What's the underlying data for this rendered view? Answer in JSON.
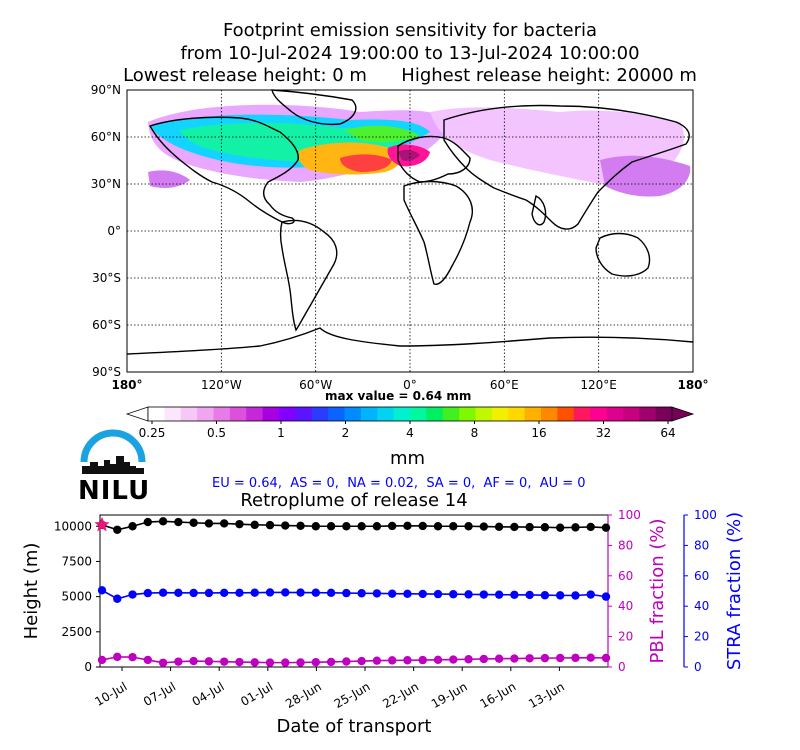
{
  "title": {
    "line1": "Footprint emission sensitivity for bacteria",
    "line2": "from 10-Jul-2024 19:00:00 to 13-Jul-2024 10:00:00",
    "line3": "Lowest release height: 0 m      Highest release height: 20000 m"
  },
  "map": {
    "lat_labels": [
      "90°N",
      "60°N",
      "30°N",
      "0°",
      "30°S",
      "60°S",
      "90°S"
    ],
    "lon_labels": [
      "180°",
      "120°W",
      "60°W",
      "0°",
      "60°E",
      "120°E",
      "180°"
    ],
    "max_value_label": "max value = 0.64 mm"
  },
  "colorbar": {
    "tick_labels": [
      "0.25",
      "0.5",
      "1",
      "2",
      "4",
      "8",
      "16",
      "32",
      "64"
    ],
    "unit": "mm",
    "colors": [
      "#ffffff",
      "#fbe6fb",
      "#f5c8f5",
      "#f0a5f0",
      "#e87be8",
      "#dc50dc",
      "#c428d8",
      "#a800e0",
      "#8200ff",
      "#5a14ff",
      "#2c3cff",
      "#0a64ff",
      "#008cff",
      "#00b4ff",
      "#00d4f0",
      "#00f0d0",
      "#00f8a0",
      "#00f060",
      "#40f020",
      "#80f800",
      "#c0f800",
      "#f0f000",
      "#ffd800",
      "#ffb000",
      "#ff8800",
      "#ff5000",
      "#ff1860",
      "#ff0090",
      "#e00090",
      "#c80080",
      "#a0006c",
      "#780058"
    ]
  },
  "logo": {
    "text": "NILU"
  },
  "region_line": "EU = 0.64,  AS = 0,  NA = 0.02,  SA = 0,  AF = 0,  AU = 0",
  "chart_data": {
    "type": "line",
    "title": "Retroplume of release 14",
    "xlabel": "Date of transport",
    "ylabel": "Height (m)",
    "ylabel_right_pbl": "PBL fraction (%)",
    "ylabel_right_stra": "STRA fraction (%)",
    "x_tick_labels": [
      "10-Jul",
      "07-Jul",
      "04-Jul",
      "01-Jul",
      "28-Jun",
      "25-Jun",
      "22-Jun",
      "19-Jun",
      "16-Jun",
      "13-Jun"
    ],
    "y_ticks": [
      "0",
      "2500",
      "5000",
      "7500",
      "10000"
    ],
    "pbl_ticks": [
      "0",
      "20",
      "40",
      "60",
      "80",
      "100"
    ],
    "stra_ticks": [
      "0",
      "20",
      "40",
      "60",
      "80",
      "100"
    ],
    "ylim": [
      0,
      10800
    ],
    "pct_lim": [
      0,
      100
    ],
    "series": [
      {
        "color": "#000000",
        "values": [
          10100,
          9750,
          10000,
          10300,
          10350,
          10300,
          10250,
          10200,
          10200,
          10150,
          10100,
          10080,
          10050,
          10030,
          10000,
          10000,
          10000,
          10000,
          10000,
          10020,
          10030,
          10020,
          10000,
          10000,
          10000,
          9980,
          9960,
          9950,
          9940,
          9930,
          9900,
          9920,
          9950,
          9900
        ]
      },
      {
        "color": "#0000ff",
        "values": [
          5450,
          4850,
          5150,
          5250,
          5280,
          5270,
          5260,
          5260,
          5270,
          5270,
          5280,
          5300,
          5300,
          5290,
          5280,
          5270,
          5250,
          5240,
          5230,
          5210,
          5200,
          5190,
          5180,
          5170,
          5160,
          5150,
          5140,
          5130,
          5120,
          5100,
          5090,
          5080,
          5150,
          5000
        ]
      },
      {
        "color": "#c000c0",
        "values": [
          500,
          720,
          700,
          500,
          300,
          380,
          420,
          400,
          380,
          350,
          330,
          310,
          310,
          320,
          340,
          360,
          390,
          420,
          450,
          470,
          480,
          490,
          510,
          530,
          550,
          570,
          590,
          600,
          620,
          630,
          640,
          650,
          660,
          640
        ]
      }
    ],
    "release_marker": {
      "x_index": 0,
      "value": 10100,
      "color": "#e8177f"
    }
  }
}
